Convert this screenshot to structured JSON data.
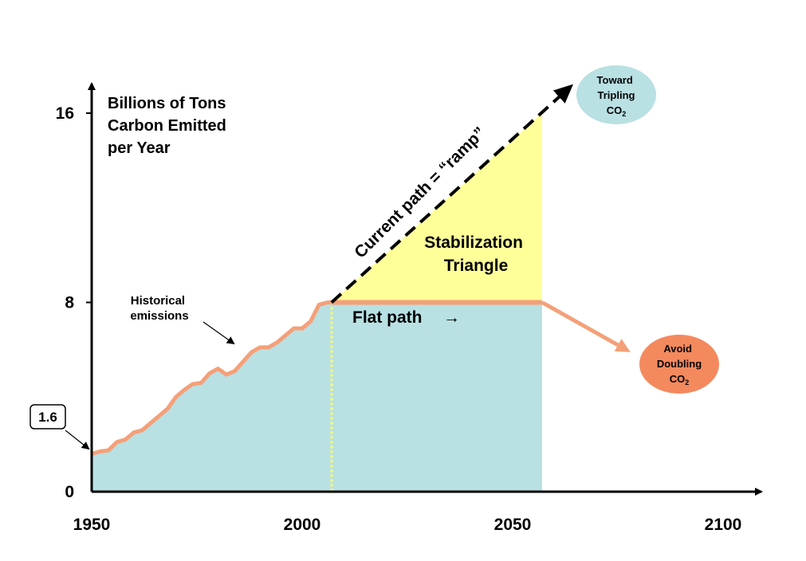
{
  "chart_data": {
    "type": "area",
    "ylabel": [
      "Billions of Tons",
      "Carbon Emitted",
      "per Year"
    ],
    "x_ticks": [
      "1950",
      "2000",
      "2050",
      "2100"
    ],
    "x_tick_values": [
      1950,
      2000,
      2050,
      2100
    ],
    "y_ticks": [
      "0",
      "8",
      "16"
    ],
    "y_tick_values": [
      0,
      8,
      16
    ],
    "xlim": [
      1950,
      2110
    ],
    "ylim": [
      0,
      17.5
    ],
    "grid": false,
    "historical": {
      "x": [
        1950,
        1952,
        1954,
        1956,
        1958,
        1960,
        1962,
        1964,
        1966,
        1968,
        1970,
        1972,
        1974,
        1976,
        1978,
        1980,
        1982,
        1984,
        1986,
        1988,
        1990,
        1992,
        1994,
        1996,
        1998,
        2000,
        2002,
        2004,
        2006,
        2007
      ],
      "y": [
        1.6,
        1.7,
        1.75,
        2.1,
        2.2,
        2.5,
        2.6,
        2.9,
        3.2,
        3.5,
        4.0,
        4.3,
        4.55,
        4.6,
        5.0,
        5.2,
        4.95,
        5.1,
        5.5,
        5.9,
        6.1,
        6.1,
        6.3,
        6.6,
        6.9,
        6.9,
        7.2,
        7.9,
        8.0,
        8.0
      ]
    },
    "flat_path": {
      "x": [
        2007,
        2057
      ],
      "y": [
        8,
        8
      ]
    },
    "ramp": {
      "x": [
        2007,
        2063
      ],
      "y": [
        8,
        17
      ]
    },
    "avoid_arrow": {
      "x": [
        2057,
        2077
      ],
      "y": [
        8,
        6.0
      ]
    },
    "stabilization_end_year": 2057,
    "stabilization_end_value": 16,
    "colors": {
      "historical_fill": "#b9e0e3",
      "triangle_fill": "#ffff99",
      "emission_line": "#f4a079",
      "ramp_line": "#000000",
      "divider": "#ffff66",
      "tripling_ellipse": "#b9e0e3",
      "doubling_ellipse": "#f4895e"
    },
    "annotations": {
      "start_value": "1.6",
      "historical": [
        "Historical",
        "emissions"
      ],
      "stabilization": [
        "Stabilization",
        "Triangle"
      ],
      "flat_path": "Flat path",
      "flat_arrow": "→",
      "ramp": "Current path = “ramp”",
      "tripling": [
        "Toward",
        "Tripling",
        "CO",
        "2"
      ],
      "doubling": [
        "Avoid",
        "Doubling",
        "CO",
        "2"
      ]
    }
  }
}
